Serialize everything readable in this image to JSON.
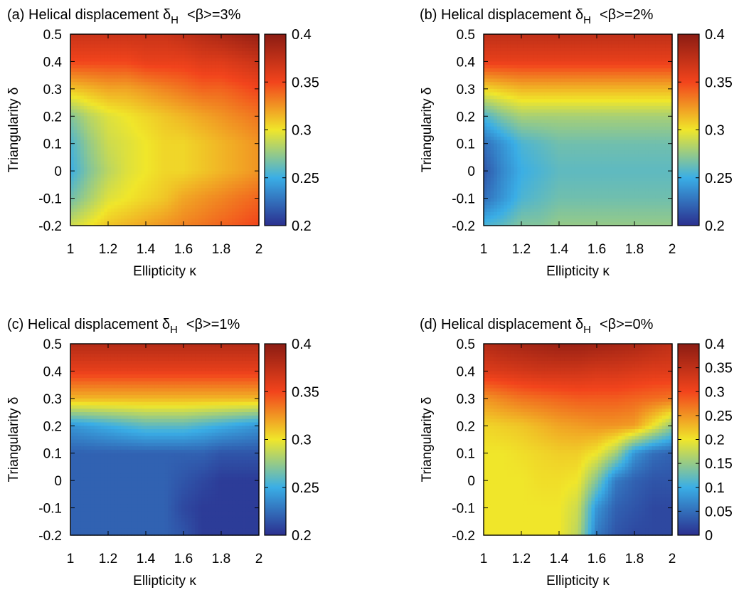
{
  "figure": {
    "panels": [
      {
        "label": "(a) Helical displacement δ",
        "sub": "H",
        "beta": "<β>=3%",
        "xlabel": "Ellipticity κ",
        "ylabel": "Triangularity δ",
        "xticks": [
          "1",
          "1.2",
          "1.4",
          "1.6",
          "1.8",
          "2"
        ],
        "yticks": [
          "0.5",
          "0.4",
          "0.3",
          "0.2",
          "0.1",
          "0",
          "-0.1",
          "-0.2"
        ],
        "cbticks": [
          "0.4",
          "0.35",
          "0.3",
          "0.25",
          "0.2"
        ],
        "vmin": 0.2,
        "vmax": 0.4
      },
      {
        "label": "(b) Helical displacement δ",
        "sub": "H",
        "beta": "<β>=2%",
        "xlabel": "Ellipticity κ",
        "ylabel": "Triangularity δ",
        "xticks": [
          "1",
          "1.2",
          "1.4",
          "1.6",
          "1.8",
          "2"
        ],
        "yticks": [
          "0.5",
          "0.4",
          "0.3",
          "0.2",
          "0.1",
          "0",
          "-0.1",
          "-0.2"
        ],
        "cbticks": [
          "0.4",
          "0.35",
          "0.3",
          "0.25",
          "0.2"
        ],
        "vmin": 0.2,
        "vmax": 0.4
      },
      {
        "label": "(c) Helical displacement δ",
        "sub": "H",
        "beta": "<β>=1%",
        "xlabel": "Ellipticity κ",
        "ylabel": "Triangularity δ",
        "xticks": [
          "1",
          "1.2",
          "1.4",
          "1.6",
          "1.8",
          "2"
        ],
        "yticks": [
          "0.5",
          "0.4",
          "0.3",
          "0.2",
          "0.1",
          "0",
          "-0.1",
          "-0.2"
        ],
        "cbticks": [
          "0.4",
          "0.35",
          "0.3",
          "0.25",
          "0.2"
        ],
        "vmin": 0.2,
        "vmax": 0.4
      },
      {
        "label": "(d) Helical displacement δ",
        "sub": "H",
        "beta": "<β>=0%",
        "xlabel": "Ellipticity κ",
        "ylabel": "Triangularity δ",
        "xticks": [
          "1",
          "1.2",
          "1.4",
          "1.6",
          "1.8",
          "2"
        ],
        "yticks": [
          "0.5",
          "0.4",
          "0.3",
          "0.2",
          "0.1",
          "0",
          "-0.1",
          "-0.2"
        ],
        "cbticks": [
          "0.4",
          "0.35",
          "0.3",
          "0.25",
          "0.2",
          "0.15",
          "0.1",
          "0.05",
          "0"
        ],
        "vmin": 0,
        "vmax": 0.4
      }
    ]
  },
  "chart_data": [
    {
      "type": "heatmap",
      "title": "(a) Helical displacement δH <β>=3%",
      "xlabel": "Ellipticity κ",
      "ylabel": "Triangularity δ",
      "xlim": [
        1,
        2
      ],
      "ylim": [
        -0.2,
        0.5
      ],
      "colorbar_range": [
        0.2,
        0.4
      ],
      "colormap": [
        "#2b2f8f",
        "#3aaee6",
        "#f0e62a",
        "#f2441c",
        "#8b1c13"
      ],
      "x": [
        1.0,
        1.1,
        1.2,
        1.3,
        1.4,
        1.5,
        1.6,
        1.7,
        1.8,
        1.9,
        2.0
      ],
      "y": [
        0.5,
        0.4,
        0.3,
        0.2,
        0.1,
        0.0,
        -0.1,
        -0.2
      ],
      "z": [
        [
          0.37,
          0.37,
          0.37,
          0.37,
          0.37,
          0.37,
          0.375,
          0.38,
          0.385,
          0.39,
          0.395
        ],
        [
          0.35,
          0.35,
          0.35,
          0.35,
          0.355,
          0.355,
          0.355,
          0.36,
          0.36,
          0.365,
          0.37
        ],
        [
          0.31,
          0.315,
          0.32,
          0.32,
          0.325,
          0.33,
          0.335,
          0.34,
          0.34,
          0.345,
          0.35
        ],
        [
          0.27,
          0.285,
          0.295,
          0.3,
          0.305,
          0.31,
          0.315,
          0.32,
          0.325,
          0.33,
          0.335
        ],
        [
          0.255,
          0.275,
          0.29,
          0.295,
          0.3,
          0.305,
          0.305,
          0.31,
          0.315,
          0.32,
          0.325
        ],
        [
          0.25,
          0.27,
          0.285,
          0.295,
          0.3,
          0.305,
          0.305,
          0.31,
          0.315,
          0.32,
          0.325
        ],
        [
          0.265,
          0.28,
          0.295,
          0.3,
          0.305,
          0.31,
          0.32,
          0.325,
          0.33,
          0.335,
          0.34
        ],
        [
          0.29,
          0.3,
          0.31,
          0.315,
          0.32,
          0.325,
          0.33,
          0.335,
          0.34,
          0.345,
          0.35
        ]
      ]
    },
    {
      "type": "heatmap",
      "title": "(b) Helical displacement δH <β>=2%",
      "xlabel": "Ellipticity κ",
      "ylabel": "Triangularity δ",
      "xlim": [
        1,
        2
      ],
      "ylim": [
        -0.2,
        0.5
      ],
      "colorbar_range": [
        0.2,
        0.4
      ],
      "colormap": [
        "#2b2f8f",
        "#3aaee6",
        "#f0e62a",
        "#f2441c",
        "#8b1c13"
      ],
      "x": [
        1.0,
        1.1,
        1.2,
        1.3,
        1.4,
        1.5,
        1.6,
        1.7,
        1.8,
        1.9,
        2.0
      ],
      "y": [
        0.5,
        0.4,
        0.3,
        0.2,
        0.1,
        0.0,
        -0.1,
        -0.2
      ],
      "z": [
        [
          0.375,
          0.375,
          0.375,
          0.375,
          0.375,
          0.375,
          0.375,
          0.375,
          0.375,
          0.375,
          0.375
        ],
        [
          0.355,
          0.355,
          0.355,
          0.355,
          0.355,
          0.355,
          0.355,
          0.355,
          0.355,
          0.355,
          0.355
        ],
        [
          0.305,
          0.31,
          0.315,
          0.315,
          0.315,
          0.315,
          0.315,
          0.315,
          0.315,
          0.315,
          0.315
        ],
        [
          0.255,
          0.27,
          0.28,
          0.28,
          0.28,
          0.28,
          0.28,
          0.28,
          0.28,
          0.28,
          0.28
        ],
        [
          0.225,
          0.24,
          0.255,
          0.26,
          0.265,
          0.265,
          0.265,
          0.265,
          0.265,
          0.265,
          0.265
        ],
        [
          0.215,
          0.235,
          0.25,
          0.255,
          0.26,
          0.26,
          0.26,
          0.26,
          0.26,
          0.26,
          0.26
        ],
        [
          0.225,
          0.24,
          0.255,
          0.26,
          0.265,
          0.265,
          0.265,
          0.265,
          0.265,
          0.265,
          0.265
        ],
        [
          0.255,
          0.26,
          0.27,
          0.27,
          0.275,
          0.275,
          0.275,
          0.275,
          0.275,
          0.275,
          0.275
        ]
      ]
    },
    {
      "type": "heatmap",
      "title": "(c) Helical displacement δH <β>=1%",
      "xlabel": "Ellipticity κ",
      "ylabel": "Triangularity δ",
      "xlim": [
        1,
        2
      ],
      "ylim": [
        -0.2,
        0.5
      ],
      "colorbar_range": [
        0.2,
        0.4
      ],
      "colormap": [
        "#2b2f8f",
        "#3aaee6",
        "#f0e62a",
        "#f2441c",
        "#8b1c13"
      ],
      "x": [
        1.0,
        1.1,
        1.2,
        1.3,
        1.4,
        1.5,
        1.6,
        1.7,
        1.8,
        1.9,
        2.0
      ],
      "y": [
        0.5,
        0.4,
        0.3,
        0.2,
        0.1,
        0.0,
        -0.1,
        -0.2
      ],
      "z": [
        [
          0.38,
          0.38,
          0.38,
          0.38,
          0.38,
          0.38,
          0.38,
          0.38,
          0.38,
          0.38,
          0.38
        ],
        [
          0.355,
          0.355,
          0.355,
          0.355,
          0.355,
          0.355,
          0.355,
          0.355,
          0.355,
          0.355,
          0.355
        ],
        [
          0.315,
          0.315,
          0.315,
          0.315,
          0.315,
          0.315,
          0.315,
          0.315,
          0.315,
          0.315,
          0.315
        ],
        [
          0.24,
          0.245,
          0.25,
          0.255,
          0.26,
          0.26,
          0.26,
          0.255,
          0.25,
          0.245,
          0.24
        ],
        [
          0.22,
          0.22,
          0.22,
          0.22,
          0.22,
          0.22,
          0.22,
          0.22,
          0.215,
          0.215,
          0.215
        ],
        [
          0.22,
          0.22,
          0.22,
          0.22,
          0.22,
          0.22,
          0.215,
          0.21,
          0.205,
          0.205,
          0.205
        ],
        [
          0.22,
          0.22,
          0.22,
          0.22,
          0.22,
          0.22,
          0.21,
          0.205,
          0.205,
          0.205,
          0.205
        ],
        [
          0.22,
          0.22,
          0.22,
          0.22,
          0.22,
          0.22,
          0.215,
          0.205,
          0.205,
          0.205,
          0.205
        ]
      ]
    },
    {
      "type": "heatmap",
      "title": "(d) Helical displacement δH <β>=0%",
      "xlabel": "Ellipticity κ",
      "ylabel": "Triangularity δ",
      "xlim": [
        1,
        2
      ],
      "ylim": [
        -0.2,
        0.5
      ],
      "colorbar_range": [
        0,
        0.4
      ],
      "colormap": [
        "#2b2f8f",
        "#3aaee6",
        "#f0e62a",
        "#f2441c",
        "#8b1c13"
      ],
      "x": [
        1.0,
        1.1,
        1.2,
        1.3,
        1.4,
        1.5,
        1.6,
        1.7,
        1.8,
        1.9,
        2.0
      ],
      "y": [
        0.5,
        0.4,
        0.3,
        0.2,
        0.1,
        0.0,
        -0.1,
        -0.2
      ],
      "z": [
        [
          0.36,
          0.37,
          0.375,
          0.38,
          0.385,
          0.385,
          0.38,
          0.375,
          0.37,
          0.36,
          0.35
        ],
        [
          0.32,
          0.325,
          0.33,
          0.335,
          0.335,
          0.335,
          0.33,
          0.33,
          0.325,
          0.32,
          0.32
        ],
        [
          0.25,
          0.26,
          0.27,
          0.275,
          0.28,
          0.285,
          0.285,
          0.285,
          0.28,
          0.275,
          0.27
        ],
        [
          0.21,
          0.215,
          0.22,
          0.23,
          0.24,
          0.245,
          0.25,
          0.25,
          0.245,
          0.2,
          0.15
        ],
        [
          0.2,
          0.2,
          0.205,
          0.21,
          0.215,
          0.215,
          0.2,
          0.16,
          0.08,
          0.05,
          0.04
        ],
        [
          0.2,
          0.2,
          0.2,
          0.205,
          0.205,
          0.2,
          0.14,
          0.06,
          0.04,
          0.03,
          0.03
        ],
        [
          0.2,
          0.2,
          0.2,
          0.2,
          0.2,
          0.18,
          0.08,
          0.04,
          0.03,
          0.02,
          0.02
        ],
        [
          0.2,
          0.2,
          0.2,
          0.2,
          0.2,
          0.17,
          0.06,
          0.03,
          0.02,
          0.02,
          0.02
        ]
      ]
    }
  ]
}
